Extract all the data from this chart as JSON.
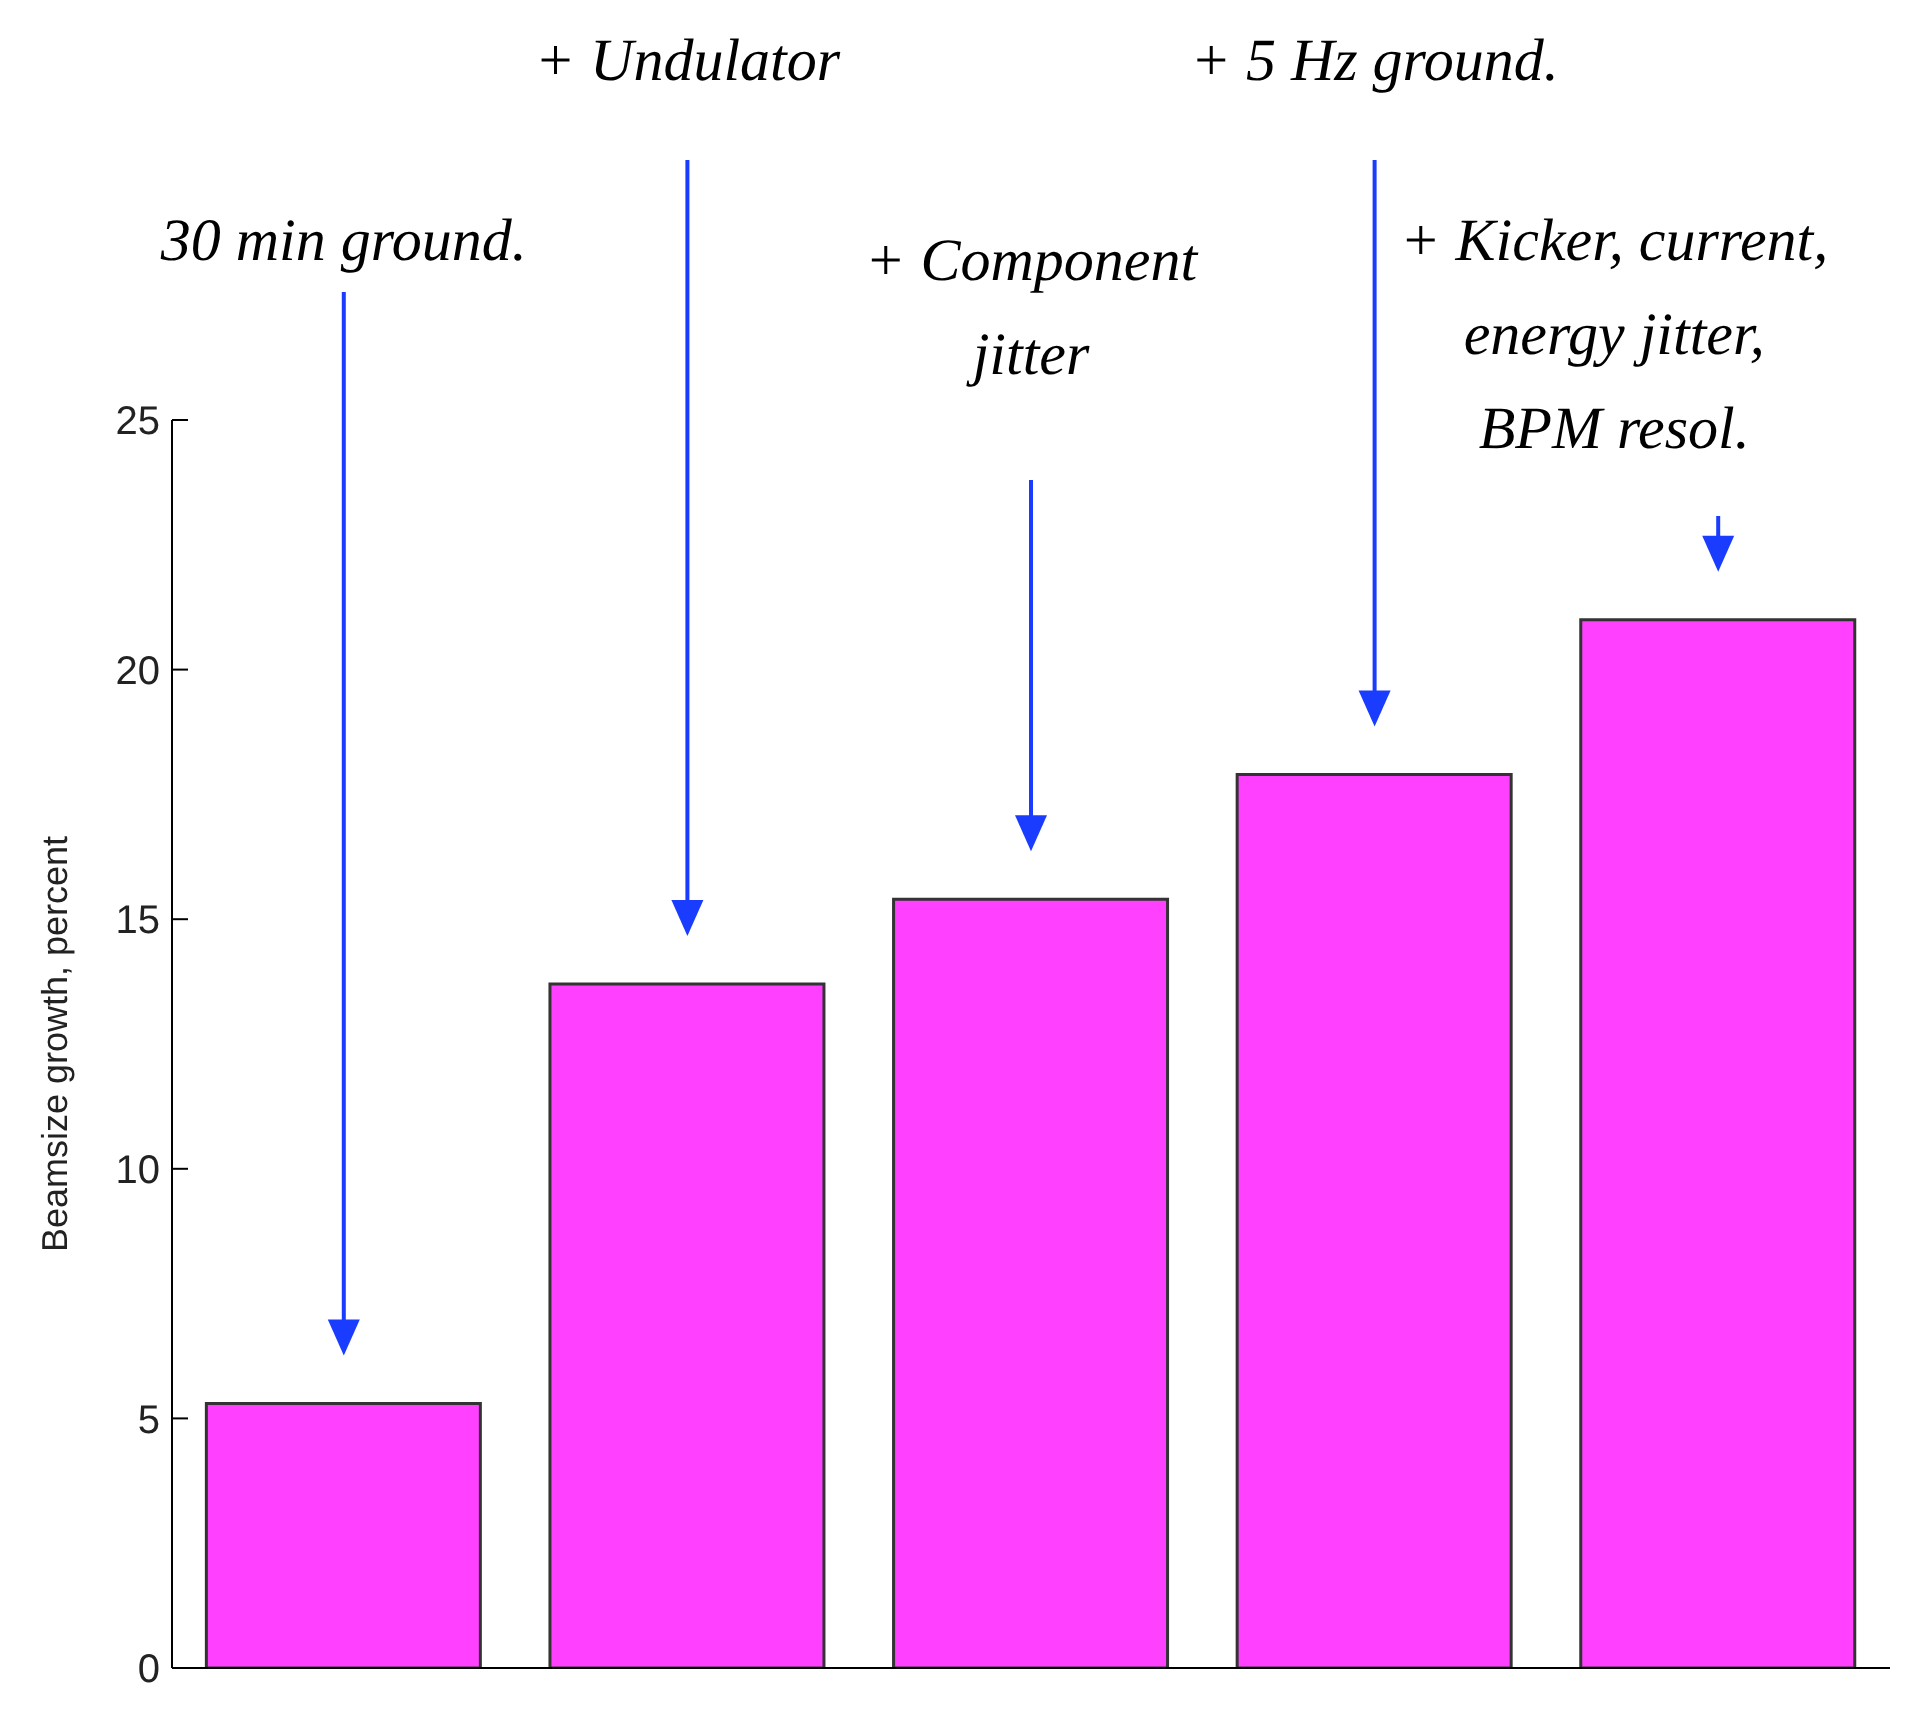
{
  "chart_data": {
    "type": "bar",
    "ylabel": "Beamsize growth, percent",
    "categories": [
      null,
      null,
      null,
      null,
      null
    ],
    "values": [
      5.3,
      13.7,
      15.4,
      17.9,
      21.0
    ],
    "color": "#ff40ff",
    "ylim": [
      0,
      25
    ],
    "yticks": [
      0,
      5,
      10,
      15,
      20,
      25
    ],
    "tick_labels": "y",
    "annotations": [
      "30 min ground.",
      "+ Undulator",
      "+ Component\njitter",
      "+ 5 Hz ground.",
      "+ Kicker, current,\nenergy jitter,\nBPM resol."
    ]
  }
}
